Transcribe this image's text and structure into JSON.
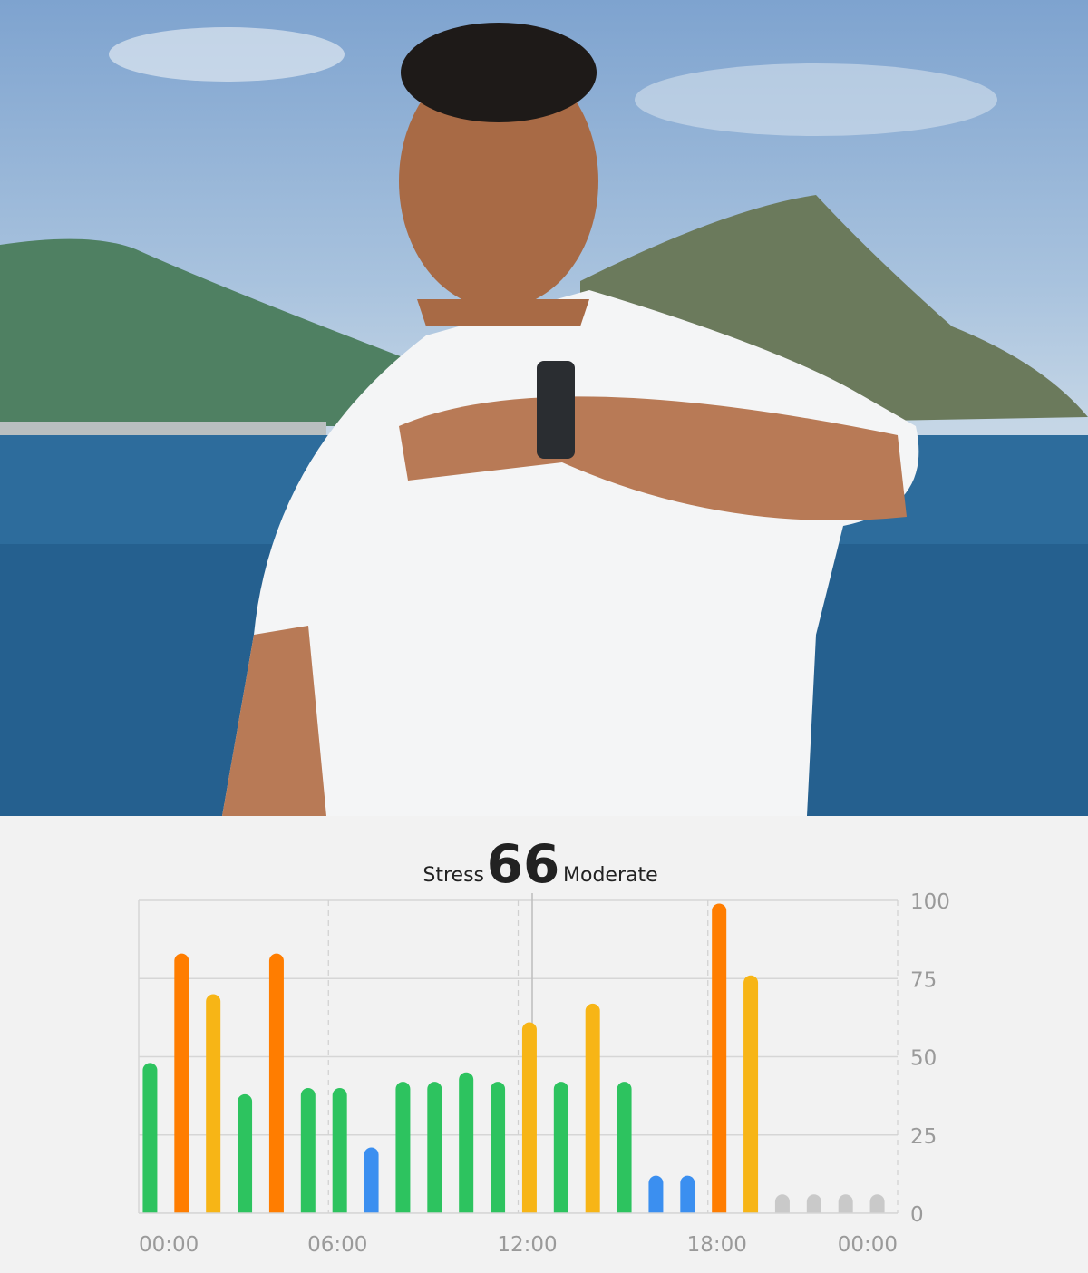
{
  "header": {
    "label": "Stress",
    "value": "66",
    "level": "Moderate"
  },
  "chart_data": {
    "type": "bar",
    "title": "",
    "x_tick_labels": [
      "00:00",
      "06:00",
      "12:00",
      "18:00",
      "00:00"
    ],
    "y_tick_labels": [
      "0",
      "25",
      "50",
      "75",
      "100"
    ],
    "ylim": [
      0,
      100
    ],
    "y_axis_side": "right",
    "grid": true,
    "hours": [
      0,
      1,
      2,
      3,
      4,
      5,
      6,
      7,
      8,
      9,
      10,
      11,
      12,
      13,
      14,
      15,
      16,
      17,
      18,
      19,
      20,
      21,
      22,
      23
    ],
    "values": [
      48,
      83,
      70,
      38,
      83,
      40,
      40,
      21,
      42,
      42,
      45,
      42,
      61,
      42,
      67,
      42,
      12,
      12,
      99,
      76,
      6,
      6,
      6,
      6
    ],
    "levels": [
      "normal",
      "high",
      "moderate",
      "normal",
      "high",
      "normal",
      "normal",
      "relaxed",
      "normal",
      "normal",
      "normal",
      "normal",
      "moderate",
      "normal",
      "moderate",
      "normal",
      "relaxed",
      "relaxed",
      "high",
      "moderate",
      "none",
      "none",
      "none",
      "none"
    ],
    "colors": {
      "relaxed": "#3b8ff0",
      "normal": "#2dc35f",
      "moderate": "#f7b516",
      "high": "#ff7d00",
      "none": "#c9c9c9"
    }
  }
}
